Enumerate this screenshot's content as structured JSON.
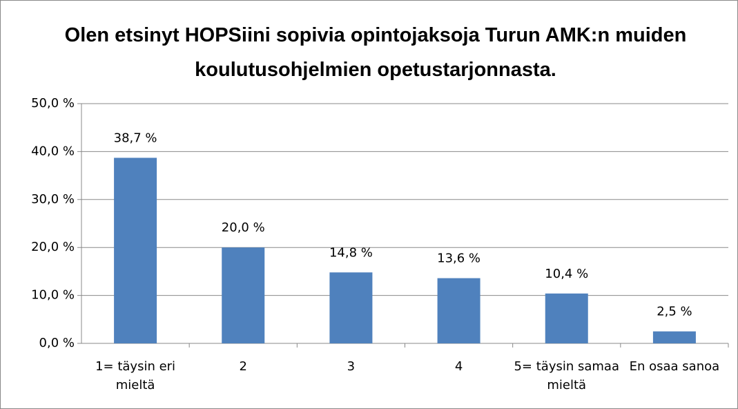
{
  "chart_data": {
    "type": "bar",
    "title": "Olen etsinyt HOPSiini sopivia opintojaksoja Turun AMK:n muiden koulutusohjelmien opetustarjonnasta.",
    "categories": [
      "1= täysin eri mieltä",
      "2",
      "3",
      "4",
      "5= täysin samaa mieltä",
      "En osaa sanoa"
    ],
    "values": [
      38.7,
      20.0,
      14.8,
      13.6,
      10.4,
      2.5
    ],
    "value_labels": [
      "38,7 %",
      "20,0 %",
      "14,8 %",
      "13,6 %",
      "10,4 %",
      "2,5 %"
    ],
    "color": "#4f81bd",
    "ylim": [
      0,
      50
    ],
    "yticks": [
      {
        "value": 0,
        "label": "0,0 %"
      },
      {
        "value": 10,
        "label": "10,0 %"
      },
      {
        "value": 20,
        "label": "20,0 %"
      },
      {
        "value": 30,
        "label": "30,0 %"
      },
      {
        "value": 40,
        "label": "40,0 %"
      },
      {
        "value": 50,
        "label": "50,0 %"
      }
    ],
    "grid": true
  }
}
